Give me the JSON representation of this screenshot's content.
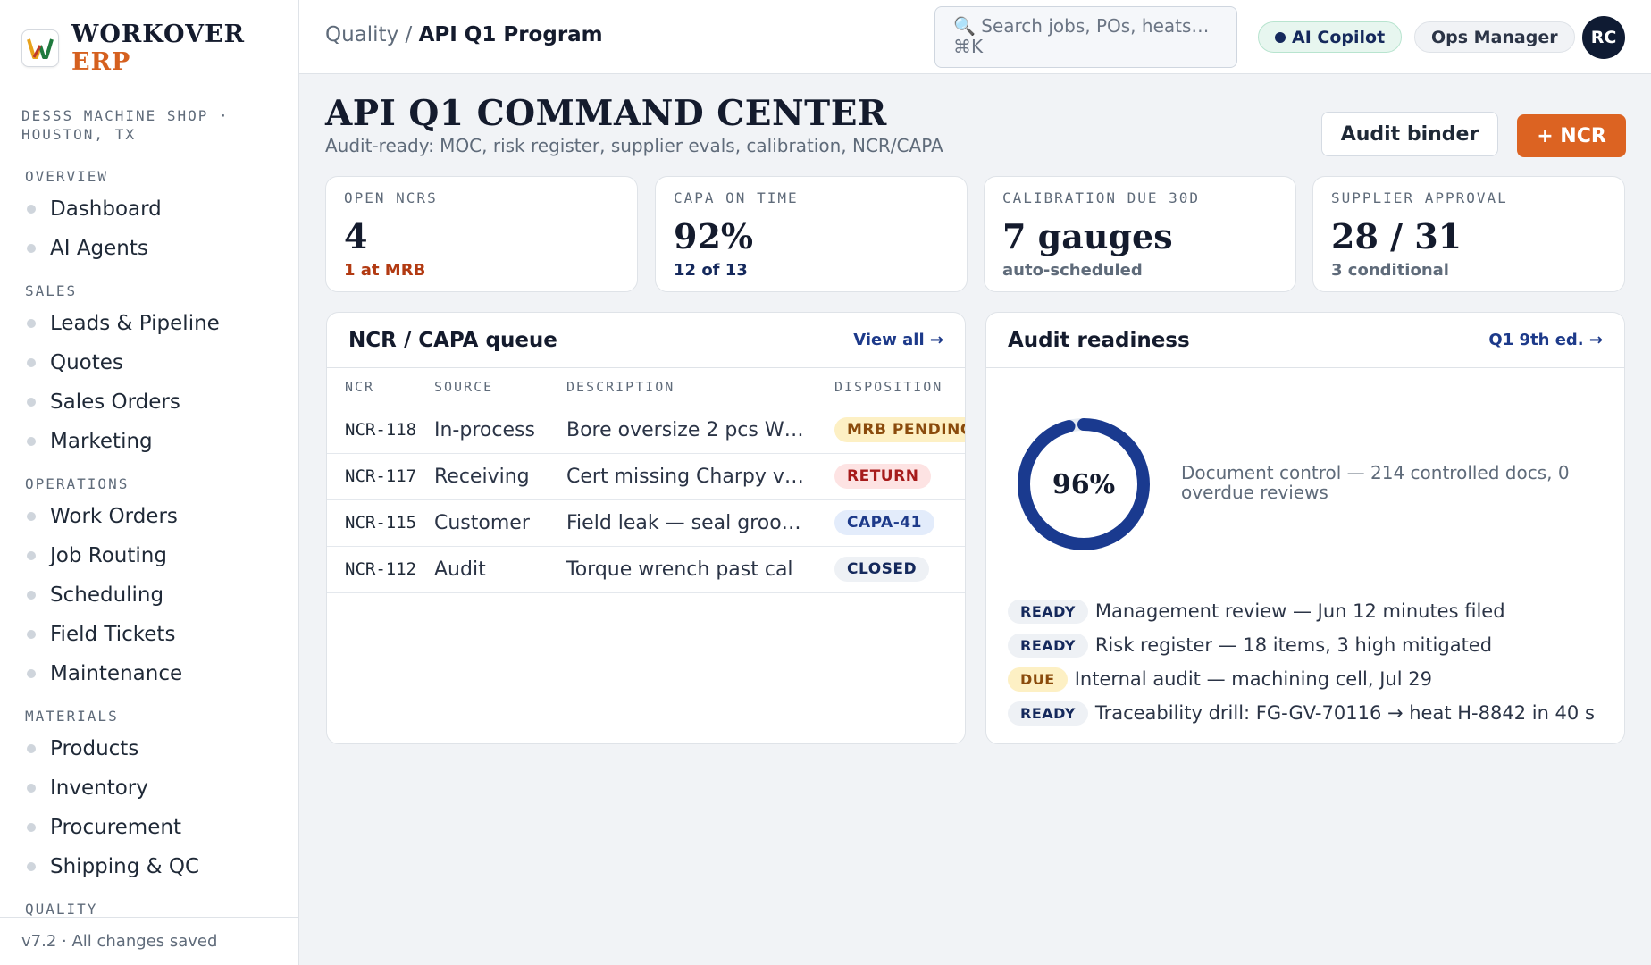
{
  "brand": {
    "logo_letter": "W",
    "line1": "WORKOVER",
    "line2": "ERP"
  },
  "shop": "DESSS MACHINE SHOP · HOUSTON, TX",
  "sidebar": {
    "sections": [
      {
        "label": "OVERVIEW",
        "items": [
          {
            "label": "Dashboard"
          },
          {
            "label": "AI Agents"
          }
        ]
      },
      {
        "label": "SALES",
        "items": [
          {
            "label": "Leads & Pipeline"
          },
          {
            "label": "Quotes"
          },
          {
            "label": "Sales Orders"
          },
          {
            "label": "Marketing"
          }
        ]
      },
      {
        "label": "OPERATIONS",
        "items": [
          {
            "label": "Work Orders"
          },
          {
            "label": "Job Routing"
          },
          {
            "label": "Scheduling"
          },
          {
            "label": "Field Tickets"
          },
          {
            "label": "Maintenance"
          }
        ]
      },
      {
        "label": "MATERIALS",
        "items": [
          {
            "label": "Products"
          },
          {
            "label": "Inventory"
          },
          {
            "label": "Procurement"
          },
          {
            "label": "Shipping & QC"
          }
        ]
      },
      {
        "label": "QUALITY",
        "items": []
      }
    ],
    "footer": "v7.2 · All changes saved"
  },
  "topbar": {
    "breadcrumb_parent": "Quality /",
    "breadcrumb_current": "API Q1 Program",
    "search_placeholder": "🔍 Search jobs, POs, heats… ⌘K",
    "ai_copilot": "AI Copilot",
    "role": "Ops Manager",
    "avatar": "RC"
  },
  "page": {
    "title": "API Q1 COMMAND CENTER",
    "subtitle": "Audit-ready: MOC, risk register, supplier evals, calibration, NCR/CAPA",
    "audit_binder": "Audit binder",
    "new_ncr": "+ NCR"
  },
  "kpis": [
    {
      "label": "OPEN NCRS",
      "value": "4",
      "note": "1 at MRB",
      "note_color": "#b23a12"
    },
    {
      "label": "CAPA ON TIME",
      "value": "92%",
      "note": "12 of 13",
      "note_color": "#15295c"
    },
    {
      "label": "CALIBRATION DUE 30D",
      "value": "7 gauges",
      "note": "auto-scheduled",
      "note_color": "#5f6b7a"
    },
    {
      "label": "SUPPLIER APPROVAL",
      "value": "28 / 31",
      "note": "3 conditional",
      "note_color": "#5f6b7a"
    }
  ],
  "ncr_panel": {
    "title": "NCR / CAPA queue",
    "view_all": "View all →",
    "columns": [
      "NCR",
      "SOURCE",
      "DESCRIPTION",
      "DISPOSITION"
    ],
    "rows": [
      {
        "ncr": "NCR-118",
        "source": "In-process",
        "description": "Bore oversize 2 pcs W…",
        "disposition": "MRB PENDING",
        "badge_bg": "#fdf0c4",
        "badge_fg": "#8a4b0c"
      },
      {
        "ncr": "NCR-117",
        "source": "Receiving",
        "description": "Cert missing Charpy v…",
        "disposition": "RETURN",
        "badge_bg": "#fde3e3",
        "badge_fg": "#a61b1b"
      },
      {
        "ncr": "NCR-115",
        "source": "Customer",
        "description": "Field leak — seal groo…",
        "disposition": "CAPA-41",
        "badge_bg": "#e3ecfb",
        "badge_fg": "#1d3a8a"
      },
      {
        "ncr": "NCR-112",
        "source": "Audit",
        "description": "Torque wrench past cal",
        "disposition": "CLOSED",
        "badge_bg": "#eef1f5",
        "badge_fg": "#15295c"
      }
    ]
  },
  "audit_panel": {
    "title": "Audit readiness",
    "edition_link": "Q1 9th ed. →",
    "readiness_percent": 96,
    "readiness_label": "96%",
    "ring_color": "#1a3a8f",
    "doc_control": "Document control — 214 controlled docs, 0 overdue reviews",
    "checks": [
      {
        "status": "READY",
        "text": "Management review — Jun 12 minutes filed",
        "badge_bg": "#eef1f5",
        "badge_fg": "#15295c"
      },
      {
        "status": "READY",
        "text": "Risk register — 18 items, 3 high mitigated",
        "badge_bg": "#eef1f5",
        "badge_fg": "#15295c"
      },
      {
        "status": "DUE",
        "text": "Internal audit — machining cell, Jul 29",
        "badge_bg": "#fdf0c4",
        "badge_fg": "#8a4b0c"
      },
      {
        "status": "READY",
        "text": "Traceability drill: FG-GV-70116 → heat H-8842 in 40 s",
        "badge_bg": "#eef1f5",
        "badge_fg": "#15295c"
      }
    ]
  }
}
